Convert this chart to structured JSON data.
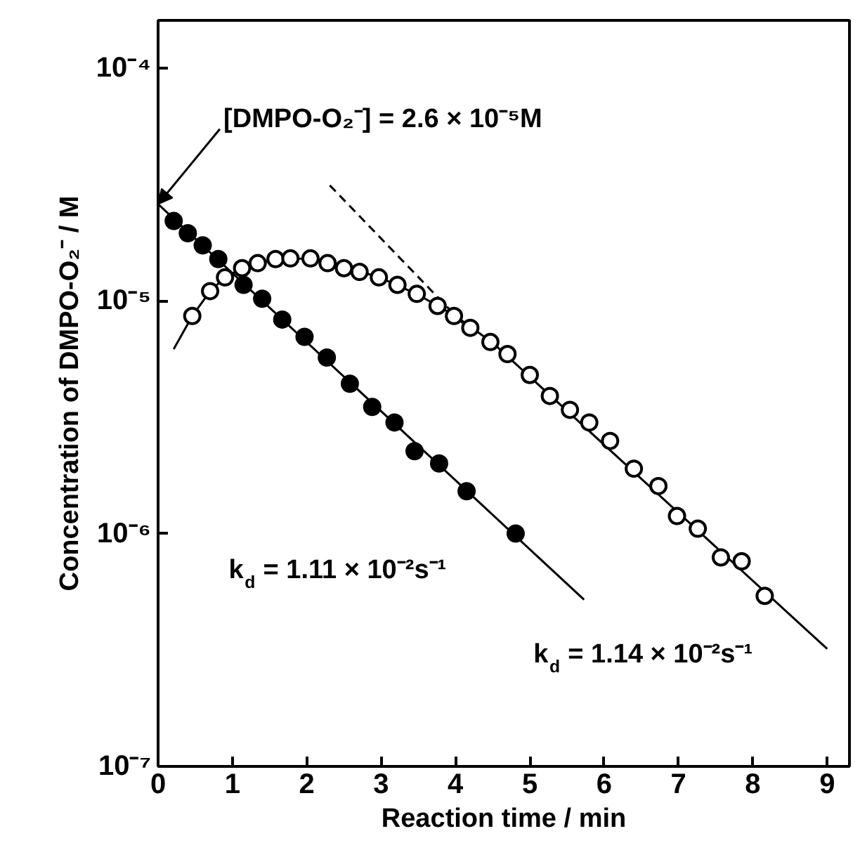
{
  "chart_data": {
    "type": "scatter",
    "xlabel": "Reaction time / min",
    "ylabel": "Concentration of DMPO-O₂⁻ / M",
    "log": "y",
    "xlim": [
      0,
      9.3
    ],
    "ylim": [
      1e-07,
      0.00016
    ],
    "xticks": [
      0,
      1,
      2,
      3,
      4,
      5,
      6,
      7,
      8,
      9
    ],
    "yticks": [
      {
        "value": 1e-07,
        "label": "10⁻⁷"
      },
      {
        "value": 1e-06,
        "label": "10⁻⁶"
      },
      {
        "value": 1e-05,
        "label": "10⁻⁵"
      },
      {
        "value": 0.0001,
        "label": "10⁻⁴"
      }
    ],
    "grid": false,
    "series": [
      {
        "marker": "circle",
        "color": "#000000",
        "x": [
          0.21,
          0.4,
          0.6,
          0.81,
          1.15,
          1.4,
          1.67,
          1.97,
          2.27,
          2.58,
          2.88,
          3.18,
          3.45,
          3.78,
          4.15,
          4.81
        ],
        "values": [
          2.2e-05,
          1.95e-05,
          1.73e-05,
          1.51e-05,
          1.17e-05,
          1.02e-05,
          8.3e-06,
          7e-06,
          5.7e-06,
          4.4e-06,
          3.5e-06,
          3e-06,
          2.26e-06,
          2e-06,
          1.52e-06,
          1e-06
        ]
      },
      {
        "marker": "circle",
        "color": "#ffffff",
        "x": [
          0.46,
          0.7,
          0.9,
          1.13,
          1.34,
          1.58,
          1.78,
          2.05,
          2.28,
          2.5,
          2.71,
          2.97,
          3.22,
          3.48,
          3.76,
          3.98,
          4.2,
          4.47,
          4.7,
          5.0,
          5.27,
          5.54,
          5.8,
          6.08,
          6.4,
          6.73,
          6.98,
          7.26,
          7.57,
          7.85,
          8.16
        ],
        "values": [
          8.6e-06,
          1.1e-05,
          1.26e-05,
          1.38e-05,
          1.45e-05,
          1.51e-05,
          1.52e-05,
          1.52e-05,
          1.45e-05,
          1.38e-05,
          1.33e-05,
          1.26e-05,
          1.17e-05,
          1.07e-05,
          9.5e-06,
          8.6e-06,
          7.65e-06,
          6.65e-06,
          5.9e-06,
          4.8e-06,
          3.9e-06,
          3.4e-06,
          3e-06,
          2.5e-06,
          1.9e-06,
          1.6e-06,
          1.19e-06,
          1.05e-06,
          7.9e-07,
          7.6e-07,
          5.4e-07
        ]
      },
      {
        "type": "line",
        "marker": "none",
        "color": "#000000",
        "line_style": "solid",
        "x": [
          0,
          5.73
        ],
        "values": [
          2.6e-05,
          5.2e-07
        ]
      },
      {
        "type": "line",
        "marker": "none",
        "color": "#000000",
        "line_style": "solid",
        "x": [
          0.21,
          0.46,
          0.7,
          0.9,
          1.13,
          1.4,
          1.8,
          2.05,
          2.5,
          3.0,
          3.5,
          4.0,
          4.5,
          9.0
        ],
        "values": [
          6.2e-06,
          8.6e-06,
          1.1e-05,
          1.26e-05,
          1.38e-05,
          1.47e-05,
          1.52e-05,
          1.51e-05,
          1.41e-05,
          1.25e-05,
          1.06e-05,
          8.6e-06,
          6.6e-06,
          3.2e-07
        ]
      },
      {
        "type": "line",
        "marker": "none",
        "color": "#000000",
        "line_style": "dashed",
        "x": [
          2.31,
          4.1
        ],
        "values": [
          3.13e-05,
          8e-06
        ]
      }
    ],
    "annotations": [
      {
        "text": "[DMPO-O₂⁻] = 2.6 × 10⁻⁵M",
        "x": 0,
        "y": 2.6e-05
      },
      "k$_{d}$ = 1.11 × 10⁻²s⁻¹",
      "k$_{d}$ = 1.14 × 10⁻²s⁻¹"
    ]
  }
}
